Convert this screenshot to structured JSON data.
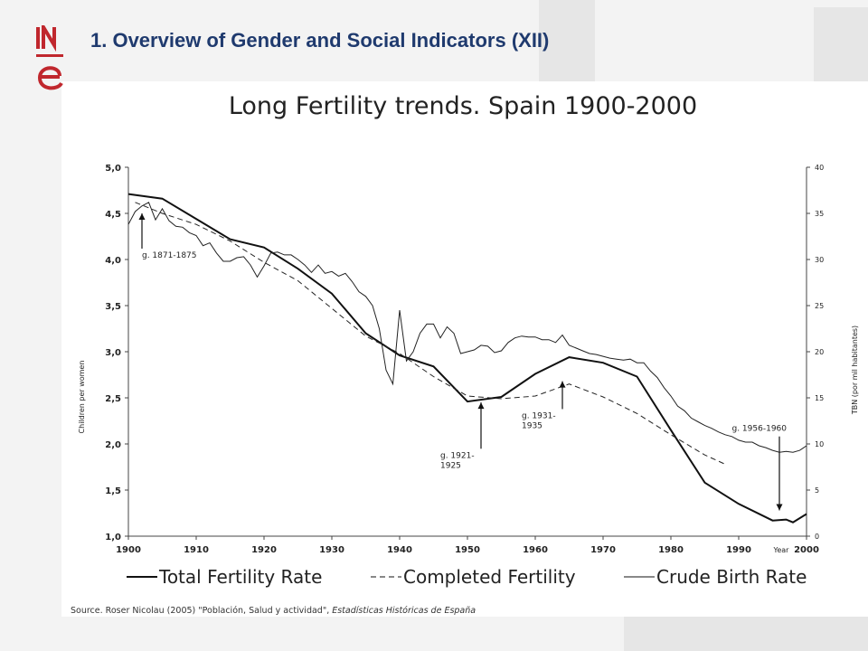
{
  "header": {
    "title": "1. Overview of Gender and Social Indicators (XII)"
  },
  "logo": {
    "text": "INE"
  },
  "colors": {
    "header_text": "#1f3a6e",
    "logo_red": "#c0272d",
    "line": "#111111"
  },
  "source": {
    "prefix": "Source. Roser Nicolau (2005) \"Población, Salud y actividad\", ",
    "italic": "Estadísticas  Históricas de España"
  },
  "chart_data": {
    "type": "line",
    "title": "Long Fertility trends. Spain 1900-2000",
    "xlabel": "Year",
    "ylabel_left": "Children per women",
    "ylabel_right": "TBN (por mil habitantes)",
    "xlim": [
      1900,
      2000
    ],
    "ylim_left": [
      1.0,
      5.0
    ],
    "ylim_right": [
      0,
      40
    ],
    "x_ticks": [
      "1900",
      "1910",
      "1920",
      "1930",
      "1940",
      "1950",
      "1960",
      "1970",
      "1980",
      "1990",
      "2000"
    ],
    "y_ticks_left": [
      "1,0",
      "1,5",
      "2,0",
      "2,5",
      "3,0",
      "3,5",
      "4,0",
      "4,5",
      "5,0"
    ],
    "y_ticks_right": [
      "0",
      "5",
      "10",
      "15",
      "20",
      "25",
      "30",
      "35",
      "40"
    ],
    "grid": false,
    "legend_position": "bottom",
    "series": [
      {
        "name": "Total Fertility Rate",
        "style": "solid-thick",
        "axis": "left",
        "x": [
          1900,
          1905,
          1910,
          1915,
          1920,
          1925,
          1930,
          1935,
          1940,
          1945,
          1950,
          1955,
          1960,
          1965,
          1970,
          1975,
          1980,
          1985,
          1990,
          1995,
          1997,
          1998,
          2000
        ],
        "y": [
          4.71,
          4.66,
          4.44,
          4.22,
          4.13,
          3.9,
          3.63,
          3.2,
          2.96,
          2.84,
          2.46,
          2.51,
          2.76,
          2.94,
          2.88,
          2.73,
          2.15,
          1.58,
          1.35,
          1.17,
          1.18,
          1.15,
          1.24
        ]
      },
      {
        "name": "Completed Fertility",
        "style": "dashed",
        "axis": "left",
        "x": [
          1901,
          1905,
          1910,
          1915,
          1920,
          1925,
          1930,
          1935,
          1940,
          1945,
          1950,
          1955,
          1960,
          1965,
          1970,
          1975,
          1980,
          1985,
          1988
        ],
        "y": [
          4.62,
          4.5,
          4.38,
          4.2,
          3.97,
          3.77,
          3.47,
          3.17,
          2.98,
          2.73,
          2.52,
          2.49,
          2.52,
          2.65,
          2.51,
          2.33,
          2.1,
          1.88,
          1.78
        ]
      },
      {
        "name": "Crude Birth Rate",
        "style": "solid-thin",
        "axis": "right",
        "x": [
          1900,
          1901,
          1902,
          1903,
          1904,
          1905,
          1906,
          1907,
          1908,
          1909,
          1910,
          1911,
          1912,
          1913,
          1914,
          1915,
          1916,
          1917,
          1918,
          1919,
          1920,
          1921,
          1922,
          1923,
          1924,
          1925,
          1926,
          1927,
          1928,
          1929,
          1930,
          1931,
          1932,
          1933,
          1934,
          1935,
          1936,
          1937,
          1938,
          1939,
          1940,
          1941,
          1942,
          1943,
          1944,
          1945,
          1946,
          1947,
          1948,
          1949,
          1950,
          1951,
          1952,
          1953,
          1954,
          1955,
          1956,
          1957,
          1958,
          1959,
          1960,
          1961,
          1962,
          1963,
          1964,
          1965,
          1966,
          1967,
          1968,
          1969,
          1970,
          1971,
          1972,
          1973,
          1974,
          1975,
          1976,
          1977,
          1978,
          1979,
          1980,
          1981,
          1982,
          1983,
          1984,
          1985,
          1986,
          1987,
          1988,
          1989,
          1990,
          1991,
          1992,
          1993,
          1994,
          1995,
          1996,
          1997,
          1998,
          1999,
          2000
        ],
        "y": [
          33.8,
          35.2,
          35.8,
          36.2,
          34.3,
          35.5,
          34.2,
          33.6,
          33.5,
          32.9,
          32.6,
          31.5,
          31.8,
          30.7,
          29.8,
          29.8,
          30.2,
          30.3,
          29.4,
          28.1,
          29.3,
          30.7,
          30.8,
          30.5,
          30.5,
          30.0,
          29.4,
          28.6,
          29.4,
          28.5,
          28.7,
          28.2,
          28.5,
          27.6,
          26.5,
          26.0,
          25.0,
          22.5,
          18.0,
          16.5,
          24.5,
          19.0,
          20.0,
          22.0,
          23.0,
          23.0,
          21.5,
          22.7,
          22.0,
          19.8,
          20.0,
          20.2,
          20.7,
          20.6,
          19.9,
          20.1,
          21.0,
          21.5,
          21.7,
          21.6,
          21.6,
          21.3,
          21.3,
          21.0,
          21.8,
          20.7,
          20.4,
          20.1,
          19.8,
          19.7,
          19.5,
          19.3,
          19.2,
          19.1,
          19.2,
          18.8,
          18.8,
          17.9,
          17.2,
          16.1,
          15.2,
          14.1,
          13.6,
          12.8,
          12.4,
          12.0,
          11.7,
          11.3,
          11.0,
          10.8,
          10.4,
          10.2,
          10.2,
          9.8,
          9.6,
          9.3,
          9.1,
          9.2,
          9.1,
          9.3,
          9.8
        ]
      }
    ],
    "annotations": [
      {
        "text": "g. 1871-1875",
        "x": 1902,
        "y_left": 4.02,
        "arrow_to_x": 1902,
        "arrow_to_y": 4.5
      },
      {
        "text": "g. 1921-\n1925",
        "x": 1946,
        "y_left": 1.85,
        "arrow_to_x": 1952,
        "arrow_to_y": 2.45
      },
      {
        "text": "g. 1931-\n1935",
        "x": 1958,
        "y_left": 2.28,
        "arrow_to_x": 1964,
        "arrow_to_y": 2.68
      },
      {
        "text": "g. 1956-1960",
        "x": 1989,
        "y_left": 2.14,
        "arrow_to_x": 1996,
        "arrow_to_y": 1.28
      }
    ]
  }
}
